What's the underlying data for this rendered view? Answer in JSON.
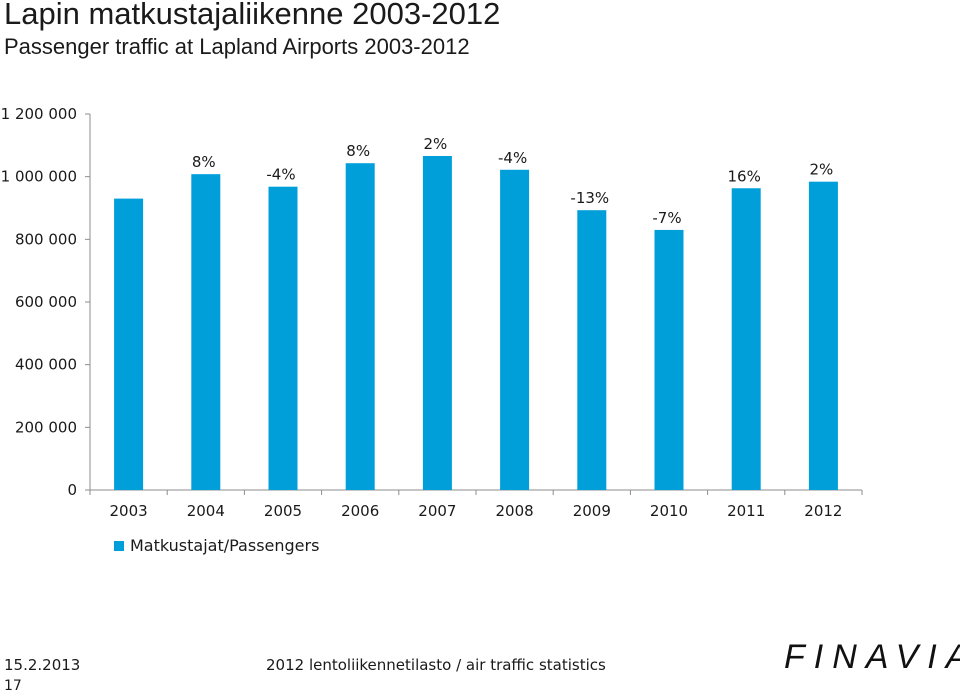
{
  "header": {
    "title": "Lapin matkustajaliikenne 2003-2012",
    "subtitle": "Passenger traffic at Lapland Airports 2003-2012"
  },
  "chart_data": {
    "type": "bar",
    "categories": [
      "2003",
      "2004",
      "2005",
      "2006",
      "2007",
      "2008",
      "2009",
      "2010",
      "2011",
      "2012"
    ],
    "series": [
      {
        "name": "Matkustajat/Passengers",
        "values": [
          930000,
          1008000,
          968000,
          1043000,
          1066000,
          1022000,
          893000,
          830000,
          963000,
          984000
        ],
        "color": "#009fda"
      }
    ],
    "data_labels": [
      "",
      "8%",
      "-4%",
      "8%",
      "2%",
      "-4%",
      "-13%",
      "-7%",
      "16%",
      "2%"
    ],
    "yticks": [
      "0",
      "200 000",
      "400 000",
      "600 000",
      "800 000",
      "1 000 000",
      "1 200 000"
    ],
    "ylim": [
      0,
      1200000
    ],
    "grid": false,
    "legend_position": "bottom-left"
  },
  "footer": {
    "date": "15.2.2013",
    "page": "17",
    "caption": "2012 lentoliikennetilasto / air traffic statistics",
    "logo": "FINAVIA"
  }
}
